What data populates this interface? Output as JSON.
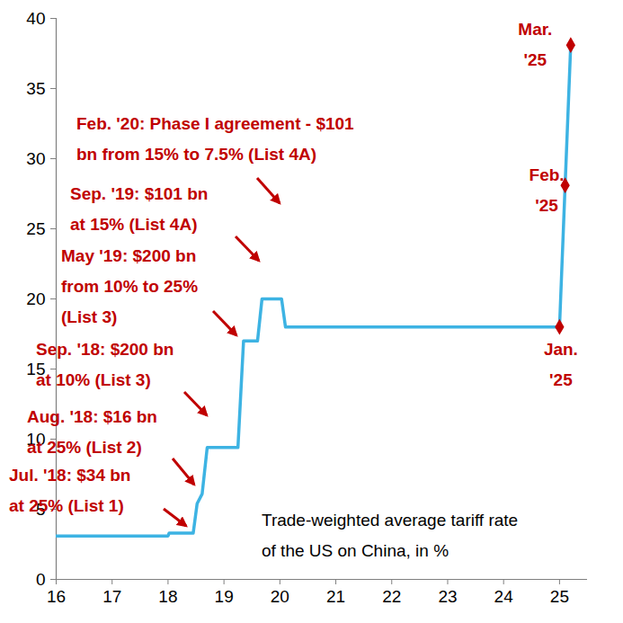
{
  "chart_data": {
    "type": "line",
    "title": "Trade-weighted average tariff rate\nof the US on China, in %",
    "x": [
      16,
      18.0,
      18.02,
      18.45,
      18.52,
      18.61,
      18.7,
      19.25,
      19.35,
      19.6,
      19.68,
      20.03,
      20.1,
      25.0,
      25.1,
      25.2
    ],
    "values": [
      3.1,
      3.1,
      3.3,
      3.3,
      5.4,
      6.1,
      9.4,
      9.4,
      17.0,
      17.0,
      20.0,
      20.0,
      18.0,
      18.0,
      28.1,
      38.1
    ],
    "color": "#3db3e3",
    "xlim": [
      16,
      25.5
    ],
    "xticks": [
      16,
      17,
      18,
      19,
      20,
      21,
      22,
      23,
      24,
      25
    ],
    "ylim": [
      0,
      40
    ],
    "yticks": [
      0,
      5,
      10,
      15,
      20,
      25,
      30,
      35,
      40
    ],
    "grid": false,
    "points": {
      "x": [
        25.0,
        25.1,
        25.2
      ],
      "y": [
        18.0,
        28.1,
        38.1
      ],
      "labels": [
        "Jan.\n'25",
        "Feb.\n'25",
        "Mar.\n'25"
      ],
      "marker": "diamond",
      "color": "#c00000"
    },
    "annotations": [
      {
        "text": "Feb. '20: Phase I agreement - $101\nbn from 15% to 7.5% (List 4A)",
        "color": "#c00000"
      },
      {
        "text": "Sep. '19: $101 bn\nat 15% (List 4A)",
        "color": "#c00000"
      },
      {
        "text": "May '19: $200 bn\nfrom 10% to 25%\n(List 3)",
        "color": "#c00000"
      },
      {
        "text": "Sep. '18: $200 bn\nat 10% (List 3)",
        "color": "#c00000"
      },
      {
        "text": "Aug. '18: $16 bn\nat 25% (List 2)",
        "color": "#c00000"
      },
      {
        "text": "Jul. '18: $34 bn\nat 25% (List 1)",
        "color": "#c00000"
      }
    ]
  }
}
